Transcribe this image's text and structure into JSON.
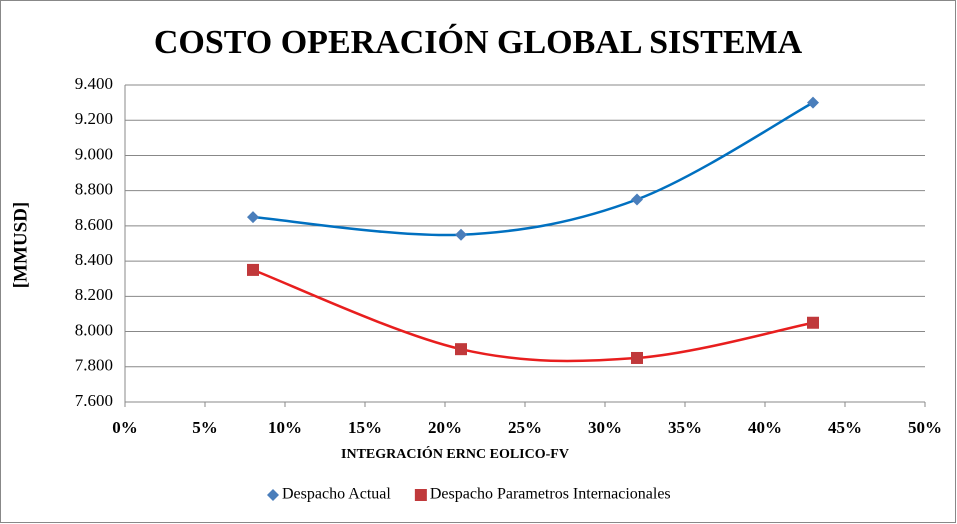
{
  "chart_data": {
    "type": "scatter_smooth",
    "title": "COSTO OPERACIÓN GLOBAL SISTEMA",
    "x_label": "INTEGRACIÓN ERNC EOLICO-FV",
    "y_label": "[MMUSD]",
    "x": [
      8,
      21,
      32,
      43
    ],
    "series": [
      {
        "name": "Despacho Actual",
        "color": "#0070c0",
        "marker_color": "#4a7ebb",
        "marker": "diamond",
        "values": [
          8.65,
          8.55,
          8.75,
          9.3
        ]
      },
      {
        "name": "Despacho Parametros Internacionales",
        "color": "#e81e1e",
        "marker_color": "#c0393b",
        "marker": "square",
        "values": [
          8.35,
          7.9,
          7.85,
          8.05
        ]
      }
    ],
    "xlim": [
      0,
      50
    ],
    "xticks": [
      {
        "value": 0,
        "label": "0%"
      },
      {
        "value": 5,
        "label": "5%"
      },
      {
        "value": 10,
        "label": "10%"
      },
      {
        "value": 15,
        "label": "15%"
      },
      {
        "value": 20,
        "label": "20%"
      },
      {
        "value": 25,
        "label": "25%"
      },
      {
        "value": 30,
        "label": "30%"
      },
      {
        "value": 35,
        "label": "35%"
      },
      {
        "value": 40,
        "label": "40%"
      },
      {
        "value": 45,
        "label": "45%"
      },
      {
        "value": 50,
        "label": "50%"
      }
    ],
    "ylim": [
      7.6,
      9.4
    ],
    "yticks": [
      {
        "value": 7.6,
        "label": "7.600"
      },
      {
        "value": 7.8,
        "label": "7.800"
      },
      {
        "value": 8.0,
        "label": "8.000"
      },
      {
        "value": 8.2,
        "label": "8.200"
      },
      {
        "value": 8.4,
        "label": "8.400"
      },
      {
        "value": 8.6,
        "label": "8.600"
      },
      {
        "value": 8.8,
        "label": "8.800"
      },
      {
        "value": 9.0,
        "label": "9.000"
      },
      {
        "value": 9.2,
        "label": "9.200"
      },
      {
        "value": 9.4,
        "label": "9.400"
      }
    ],
    "grid": true,
    "legend": "bottom"
  }
}
